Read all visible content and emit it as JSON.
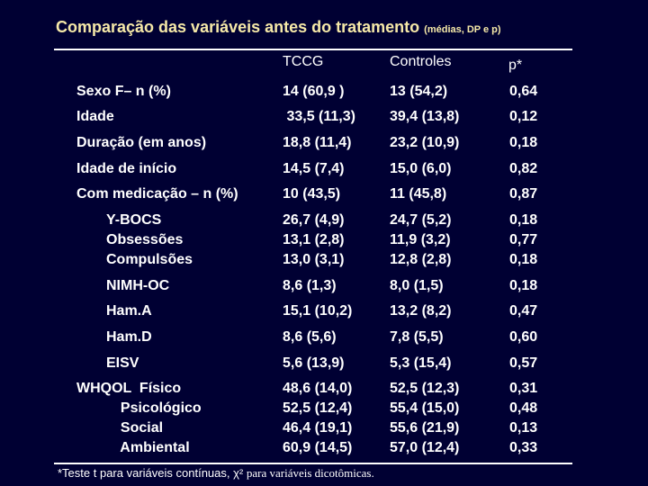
{
  "title": {
    "main": "Comparação das variáveis  antes do tratamento",
    "sub": "(médias, DP e p)"
  },
  "header": {
    "col1": "TCCG",
    "col2": "Controles",
    "col3": "p*"
  },
  "rows": [
    {
      "label": "Sexo F– n (%)",
      "c1": "14 (60,9 )",
      "c2": "13 (54,2)",
      "c3": "0,64"
    },
    {
      "label": "Idade",
      "c1": " 33,5 (11,3)",
      "c2": "39,4 (13,8)",
      "c3": "0,12"
    },
    {
      "label": "Duração (em anos)",
      "c1": "18,8 (11,4)",
      "c2": "23,2 (10,9)",
      "c3": "0,18"
    },
    {
      "label": "Idade de início",
      "c1": "14,5 (7,4)",
      "c2": "15,0 (6,0)",
      "c3": "0,82"
    },
    {
      "label": "Com medicação – n (%)",
      "c1": "10 (43,5)",
      "c2": "11 (45,8)",
      "c3": "0,87"
    },
    {
      "label": "Y-BOCS\nObsessões\nCompulsões",
      "c1": "26,7 (4,9)\n13,1 (2,8)\n13,0 (3,1)",
      "c2": "24,7 (5,2)\n11,9 (3,2)\n12,8 (2,8)",
      "c3": "0,18\n0,77\n0,18"
    },
    {
      "label": "NIMH-OC",
      "c1": "8,6 (1,3)",
      "c2": "8,0 (1,5)",
      "c3": "0,18"
    },
    {
      "label": "Ham.A",
      "c1": "15,1 (10,2)",
      "c2": "13,2 (8,2)",
      "c3": "0,47"
    },
    {
      "label": "Ham.D",
      "c1": "8,6 (5,6)",
      "c2": "7,8 (5,5)",
      "c3": "0,60"
    },
    {
      "label": "EISV",
      "c1": "5,6 (13,9)",
      "c2": "5,3 (15,4)",
      "c3": "0,57"
    },
    {
      "label": "WHQOL  Físico\n           Psicológico\n           Social\n           Ambiental",
      "c1": "48,6 (14,0)\n52,5 (12,4)\n46,4 (19,1)\n60,9 (14,5)",
      "c2": "52,5 (12,3)\n55,4 (15,0)\n55,6 (21,9)\n57,0 (12,4)",
      "c3": "0,31\n0,48\n0,13\n0,33"
    }
  ],
  "footnote": {
    "part1": "*Teste t para variáveis contínuas, χ² ",
    "part2": "para variáveis dicotômicas."
  }
}
